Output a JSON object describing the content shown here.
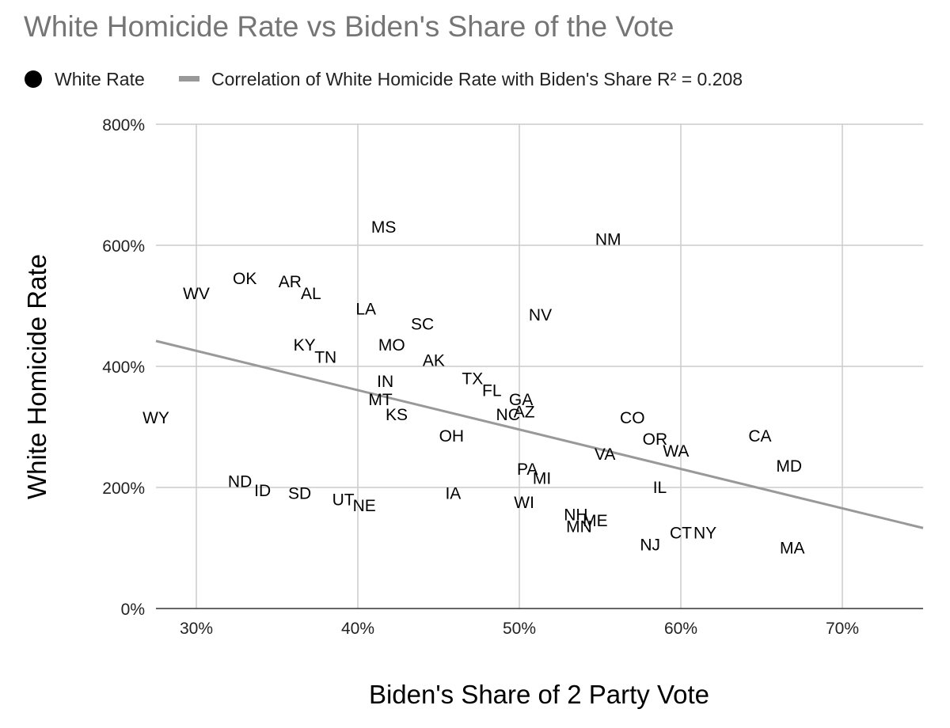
{
  "chart_data": {
    "type": "scatter",
    "title": "White Homicide Rate vs Biden's Share of the Vote",
    "xlabel": "Biden's Share of 2 Party Vote",
    "ylabel": "White Homicide Rate",
    "xlim": [
      0.275,
      0.75
    ],
    "ylim": [
      0,
      8
    ],
    "x_ticks": [
      {
        "value": 0.3,
        "label": "30%"
      },
      {
        "value": 0.4,
        "label": "40%"
      },
      {
        "value": 0.5,
        "label": "50%"
      },
      {
        "value": 0.6,
        "label": "60%"
      },
      {
        "value": 0.7,
        "label": "70%"
      }
    ],
    "y_ticks": [
      {
        "value": 0,
        "label": "0%"
      },
      {
        "value": 2,
        "label": "200%"
      },
      {
        "value": 4,
        "label": "400%"
      },
      {
        "value": 6,
        "label": "600%"
      },
      {
        "value": 8,
        "label": "800%"
      }
    ],
    "grid": true,
    "legend": {
      "position": "top-left",
      "entries": [
        {
          "label": "White Rate",
          "marker": "dot",
          "color": "#000000"
        },
        {
          "label": "Correlation of White Homicide Rate with Biden's Share R² = 0.208",
          "marker": "line",
          "color": "#999999"
        }
      ]
    },
    "series": [
      {
        "name": "White Rate",
        "color": "#000000",
        "points": [
          {
            "label": "WY",
            "x": 0.275,
            "y": 3.15
          },
          {
            "label": "WV",
            "x": 0.3,
            "y": 5.2
          },
          {
            "label": "OK",
            "x": 0.33,
            "y": 5.45
          },
          {
            "label": "AR",
            "x": 0.358,
            "y": 5.4
          },
          {
            "label": "AL",
            "x": 0.371,
            "y": 5.2
          },
          {
            "label": "KY",
            "x": 0.367,
            "y": 4.35
          },
          {
            "label": "TN",
            "x": 0.38,
            "y": 4.15
          },
          {
            "label": "ND",
            "x": 0.327,
            "y": 2.1
          },
          {
            "label": "ID",
            "x": 0.341,
            "y": 1.95
          },
          {
            "label": "SD",
            "x": 0.364,
            "y": 1.9
          },
          {
            "label": "UT",
            "x": 0.391,
            "y": 1.8
          },
          {
            "label": "NE",
            "x": 0.404,
            "y": 1.7
          },
          {
            "label": "MS",
            "x": 0.416,
            "y": 6.3
          },
          {
            "label": "LA",
            "x": 0.405,
            "y": 4.95
          },
          {
            "label": "MO",
            "x": 0.421,
            "y": 4.35
          },
          {
            "label": "SC",
            "x": 0.44,
            "y": 4.7
          },
          {
            "label": "AK",
            "x": 0.447,
            "y": 4.1
          },
          {
            "label": "IN",
            "x": 0.417,
            "y": 3.75
          },
          {
            "label": "MT",
            "x": 0.414,
            "y": 3.45
          },
          {
            "label": "KS",
            "x": 0.424,
            "y": 3.2
          },
          {
            "label": "OH",
            "x": 0.458,
            "y": 2.85
          },
          {
            "label": "IA",
            "x": 0.459,
            "y": 1.9
          },
          {
            "label": "TX",
            "x": 0.471,
            "y": 3.8
          },
          {
            "label": "FL",
            "x": 0.483,
            "y": 3.6
          },
          {
            "label": "NC",
            "x": 0.493,
            "y": 3.2
          },
          {
            "label": "GA",
            "x": 0.501,
            "y": 3.45
          },
          {
            "label": "AZ",
            "x": 0.503,
            "y": 3.25
          },
          {
            "label": "NV",
            "x": 0.513,
            "y": 4.85
          },
          {
            "label": "PA",
            "x": 0.505,
            "y": 2.3
          },
          {
            "label": "MI",
            "x": 0.514,
            "y": 2.15
          },
          {
            "label": "WI",
            "x": 0.503,
            "y": 1.75
          },
          {
            "label": "NM",
            "x": 0.555,
            "y": 6.1
          },
          {
            "label": "VA",
            "x": 0.553,
            "y": 2.55
          },
          {
            "label": "NH",
            "x": 0.535,
            "y": 1.55
          },
          {
            "label": "MN",
            "x": 0.537,
            "y": 1.35
          },
          {
            "label": "ME",
            "x": 0.547,
            "y": 1.45
          },
          {
            "label": "CO",
            "x": 0.57,
            "y": 3.15
          },
          {
            "label": "OR",
            "x": 0.584,
            "y": 2.8
          },
          {
            "label": "WA",
            "x": 0.597,
            "y": 2.6
          },
          {
            "label": "IL",
            "x": 0.587,
            "y": 2.0
          },
          {
            "label": "NJ",
            "x": 0.581,
            "y": 1.05
          },
          {
            "label": "CT",
            "x": 0.6,
            "y": 1.25
          },
          {
            "label": "NY",
            "x": 0.615,
            "y": 1.25
          },
          {
            "label": "CA",
            "x": 0.649,
            "y": 2.85
          },
          {
            "label": "MD",
            "x": 0.667,
            "y": 2.35
          },
          {
            "label": "MA",
            "x": 0.669,
            "y": 1.0
          }
        ]
      },
      {
        "name": "Correlation of White Homicide Rate with Biden's Share R² = 0.208",
        "type": "trendline",
        "color": "#999999",
        "x": [
          0.275,
          0.75
        ],
        "y": [
          4.42,
          1.33
        ]
      }
    ]
  }
}
